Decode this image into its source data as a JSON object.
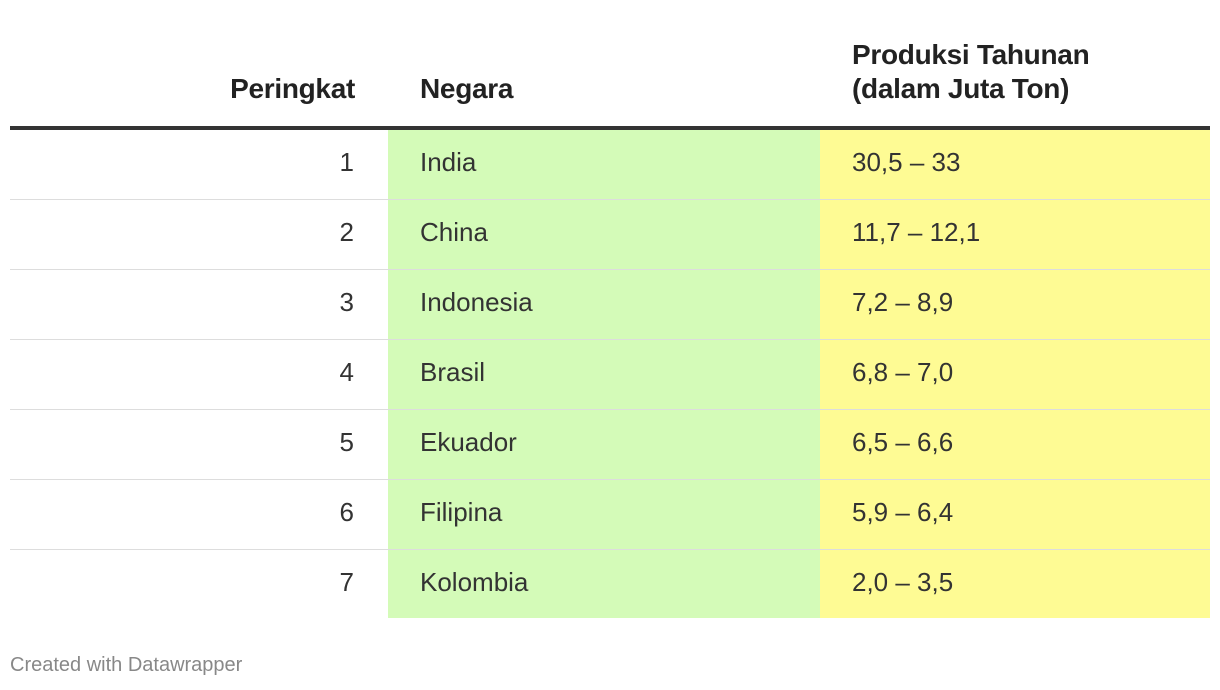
{
  "header": {
    "rank": "Peringkat",
    "country": "Negara",
    "production": "Produksi Tahunan\n(dalam Juta Ton)"
  },
  "rows": [
    {
      "rank": "1",
      "country": "India",
      "production": "30,5 – 33"
    },
    {
      "rank": "2",
      "country": "China",
      "production": "11,7 – 12,1"
    },
    {
      "rank": "3",
      "country": "Indonesia",
      "production": "7,2 – 8,9"
    },
    {
      "rank": "4",
      "country": "Brasil",
      "production": "6,8 – 7,0"
    },
    {
      "rank": "5",
      "country": "Ekuador",
      "production": "6,5 – 6,6"
    },
    {
      "rank": "6",
      "country": "Filipina",
      "production": "5,9 – 6,4"
    },
    {
      "rank": "7",
      "country": "Kolombia",
      "production": "2,0 – 3,5"
    }
  ],
  "colors": {
    "country_column": "#d4fbb8",
    "production_column": "#fefb94",
    "header_rule": "#333333",
    "row_divider": "#dddddd"
  },
  "footer": {
    "credit": "Created with Datawrapper"
  },
  "chart_data": {
    "type": "table",
    "columns": [
      "Peringkat",
      "Negara",
      "Produksi Tahunan\n(dalam Juta Ton)"
    ],
    "rows": [
      [
        "1",
        "India",
        "30,5 – 33"
      ],
      [
        "2",
        "China",
        "11,7 – 12,1"
      ],
      [
        "3",
        "Indonesia",
        "7,2 – 8,9"
      ],
      [
        "4",
        "Brasil",
        "6,8 – 7,0"
      ],
      [
        "5",
        "Ekuador",
        "6,5 – 6,6"
      ],
      [
        "6",
        "Filipina",
        "5,9 – 6,4"
      ],
      [
        "7",
        "Kolombia",
        "2,0 – 3,5"
      ]
    ]
  }
}
